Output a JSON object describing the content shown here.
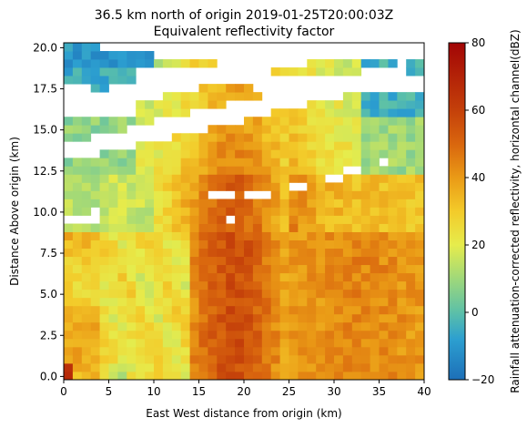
{
  "chart_data": {
    "type": "heatmap",
    "title": "36.5 km north of origin 2019-01-25T20:00:03Z",
    "subtitle": "Equivalent reflectivity factor",
    "xlabel": "East West distance from origin (km)",
    "ylabel": "Distance Above origin (km)",
    "xlim": [
      0,
      40
    ],
    "ylim": [
      -0.2,
      20.3
    ],
    "xticks": [
      0,
      5,
      10,
      15,
      20,
      25,
      30,
      35,
      40
    ],
    "yticks": [
      0.0,
      2.5,
      5.0,
      7.5,
      10.0,
      12.5,
      15.0,
      17.5,
      20.0
    ],
    "xtick_labels": [
      "0",
      "5",
      "10",
      "15",
      "20",
      "25",
      "30",
      "35",
      "40"
    ],
    "ytick_labels": [
      "0.0",
      "2.5",
      "5.0",
      "7.5",
      "10.0",
      "12.5",
      "15.0",
      "17.5",
      "20.0"
    ],
    "colorbar": {
      "label": "Rainfall attenuation-corrected reflectivity, horizontal channel(dBZ)",
      "range": [
        -20,
        80
      ],
      "ticks": [
        -20,
        0,
        20,
        40,
        60,
        80
      ],
      "tick_labels": [
        "−20",
        "0",
        "20",
        "40",
        "60",
        "80"
      ]
    },
    "grid": false,
    "field_description": {
      "low_level_max_dbz": 62,
      "core_x_km": [
        15,
        23
      ],
      "bands_tilted_upward_to_east": true
    }
  }
}
